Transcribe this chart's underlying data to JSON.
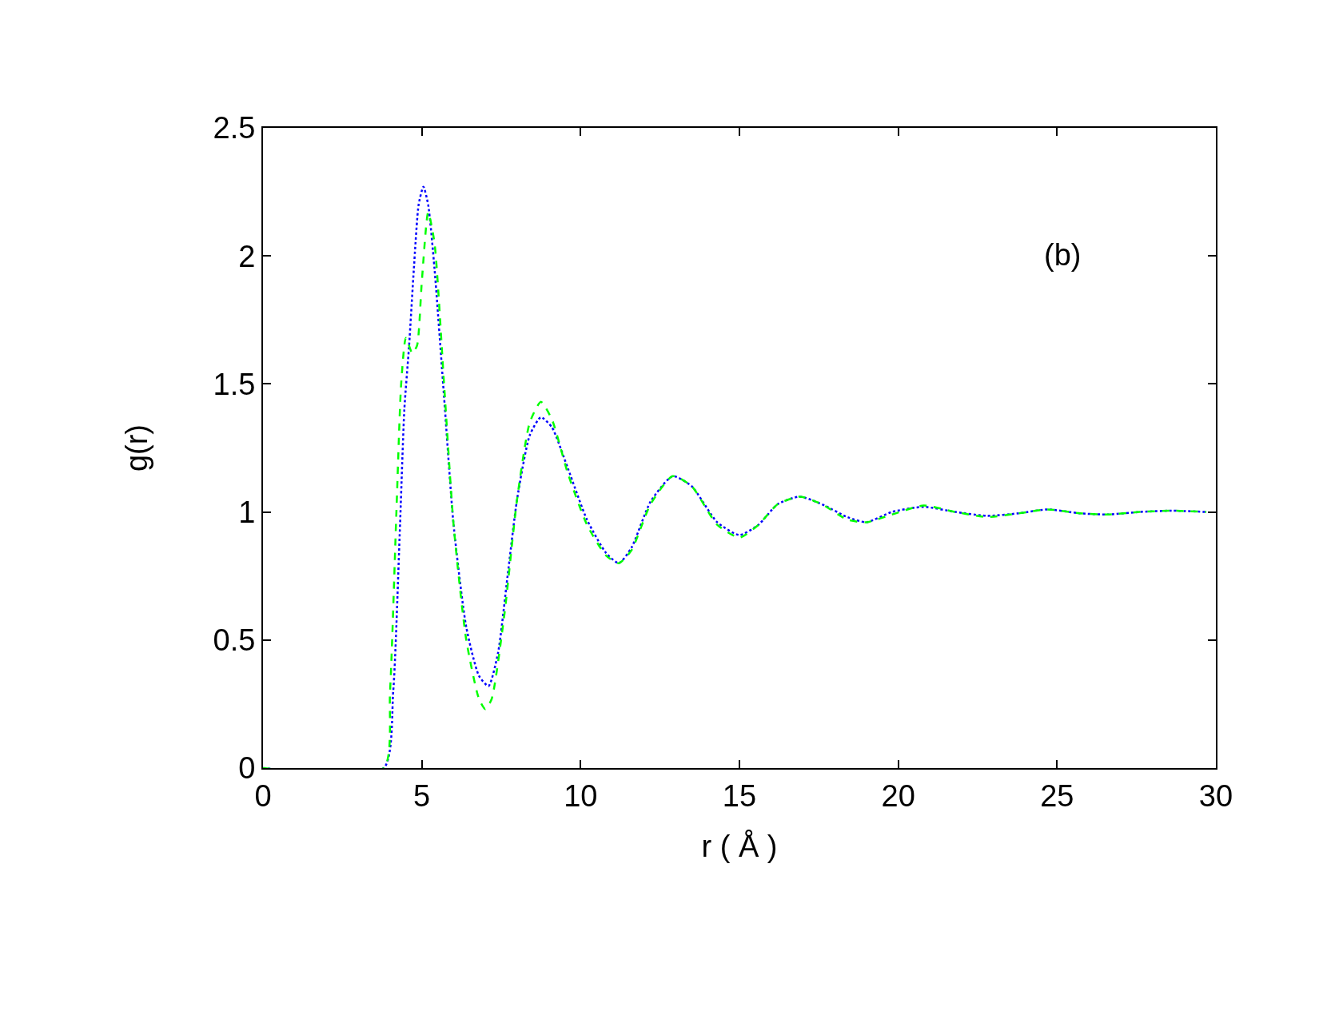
{
  "chart_data": {
    "type": "line",
    "xlabel": "r ( Å )",
    "ylabel": "g(r)",
    "annotations": [
      "(b)"
    ],
    "xlim": [
      0,
      30
    ],
    "xticks": [
      0,
      5,
      10,
      15,
      20,
      25,
      30
    ],
    "ylim": [
      0,
      2.5
    ],
    "yticks": [
      0,
      0.5,
      1,
      1.5,
      2,
      2.5
    ],
    "series": [
      {
        "color": "#0000ff",
        "line_style": "dotted",
        "x": [
          0,
          3.8,
          4.1,
          4.3,
          4.45,
          4.6,
          4.75,
          4.9,
          5.05,
          5.2,
          5.4,
          5.7,
          6.0,
          6.4,
          6.8,
          7.1,
          7.4,
          7.7,
          8.0,
          8.4,
          8.75,
          9.1,
          9.6,
          10.2,
          10.8,
          11.2,
          11.6,
          12.2,
          12.9,
          13.5,
          14.3,
          15.0,
          15.6,
          16.2,
          16.9,
          17.6,
          18.4,
          19.0,
          19.8,
          20.8,
          21.8,
          22.8,
          23.8,
          24.7,
          25.7,
          26.6,
          27.6,
          28.6,
          29.7
        ],
        "values": [
          0,
          0,
          0.3,
          0.9,
          1.4,
          1.65,
          1.95,
          2.2,
          2.27,
          2.2,
          1.95,
          1.45,
          0.95,
          0.55,
          0.36,
          0.32,
          0.45,
          0.75,
          1.05,
          1.3,
          1.37,
          1.33,
          1.17,
          0.97,
          0.84,
          0.8,
          0.86,
          1.04,
          1.14,
          1.1,
          0.96,
          0.91,
          0.95,
          1.03,
          1.06,
          1.03,
          0.98,
          0.96,
          1.0,
          1.02,
          1.0,
          0.985,
          0.995,
          1.01,
          0.995,
          0.99,
          1.0,
          1.005,
          1.0
        ]
      },
      {
        "color": "#00ff00",
        "line_style": "dashed",
        "x": [
          0,
          3.8,
          4.0,
          4.2,
          4.35,
          4.5,
          4.7,
          4.85,
          5.0,
          5.2,
          5.4,
          5.7,
          6.0,
          6.4,
          6.8,
          7.0,
          7.2,
          7.6,
          8.0,
          8.4,
          8.75,
          9.1,
          9.6,
          10.2,
          10.8,
          11.2,
          11.6,
          12.2,
          12.9,
          13.5,
          14.3,
          15.0,
          15.6,
          16.2,
          16.9,
          17.6,
          18.4,
          19.0,
          19.8,
          20.8,
          21.8,
          22.8,
          23.8,
          24.7,
          25.7,
          26.6,
          27.6,
          28.6,
          29.7
        ],
        "values": [
          0,
          0,
          0.3,
          1.0,
          1.5,
          1.68,
          1.62,
          1.65,
          1.9,
          2.17,
          2.05,
          1.5,
          0.95,
          0.5,
          0.27,
          0.23,
          0.27,
          0.6,
          1.05,
          1.35,
          1.43,
          1.36,
          1.15,
          0.95,
          0.83,
          0.8,
          0.85,
          1.03,
          1.14,
          1.1,
          0.95,
          0.9,
          0.95,
          1.03,
          1.06,
          1.03,
          0.97,
          0.96,
          0.99,
          1.025,
          1.0,
          0.98,
          0.995,
          1.01,
          0.995,
          0.99,
          1.0,
          1.005,
          1.0
        ]
      }
    ]
  }
}
